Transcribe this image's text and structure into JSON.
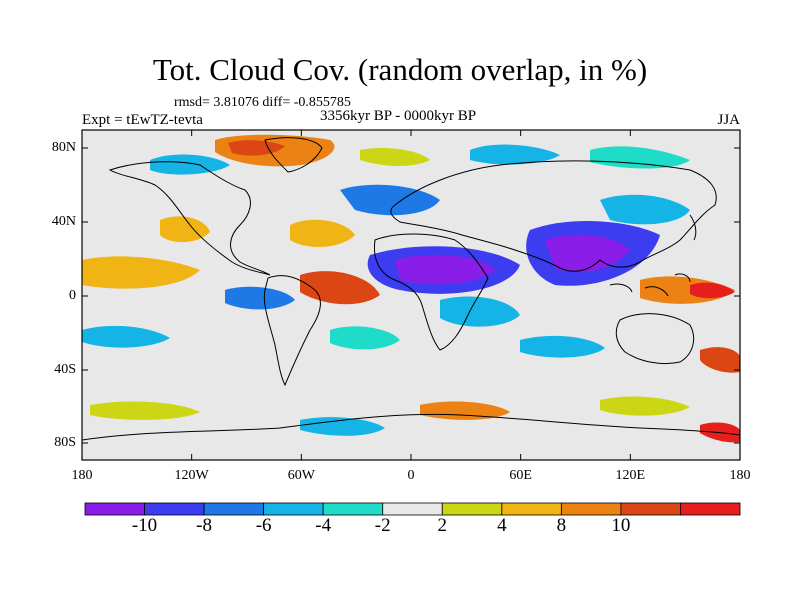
{
  "header": {
    "title": "Tot. Cloud Cov. (random overlap, in %)",
    "stats": "rmsd= 3.81076 diff= -0.855785",
    "experiment": "Expt = tEwTZ-tevta",
    "period": "3356kyr BP - 0000kyr BP",
    "season": "JJA"
  },
  "axes": {
    "lat_ticks": [
      "80N",
      "40N",
      "0",
      "40S",
      "80S"
    ],
    "lon_ticks": [
      "180",
      "120W",
      "60W",
      "0",
      "60E",
      "120E",
      "180"
    ]
  },
  "colorbar": {
    "labels": [
      "-10",
      "-8",
      "-6",
      "-4",
      "-2",
      "2",
      "4",
      "8",
      "10"
    ],
    "colors": [
      "#8a1ee8",
      "#3c3cf0",
      "#1e78e6",
      "#14b4e6",
      "#1edcc8",
      "#e8e8e8",
      "#cdd614",
      "#f0b414",
      "#ec8214",
      "#dc4614",
      "#e61e1e"
    ]
  },
  "map": {
    "background_color": "#e8e8e8",
    "coastline_color": "#000000"
  }
}
